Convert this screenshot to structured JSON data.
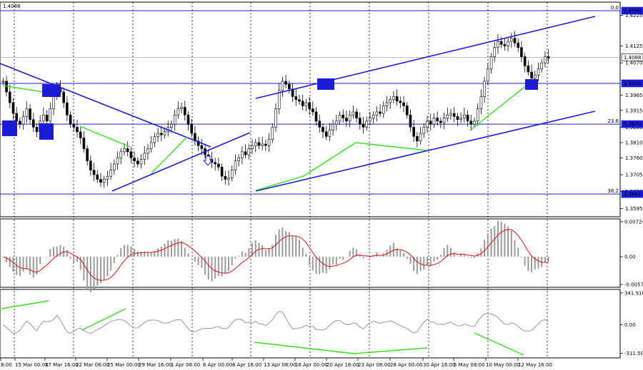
{
  "symbol_price": "1.4088",
  "price_panel": {
    "y_ticks": [
      "1.4225",
      "1.4125",
      "1.4070",
      "1.3965",
      "1.3915",
      "1.3860",
      "1.3810",
      "1.3760",
      "1.3705",
      "1.3650",
      "1.3595"
    ],
    "levels": [
      {
        "label": "1.4240",
        "fib": "0.0",
        "value": 1.424
      },
      {
        "label": "1.4088",
        "fib": "",
        "value": 1.4088,
        "type": "current"
      },
      {
        "label": "1.4003",
        "fib": "",
        "value": 1.4003
      },
      {
        "label": "1.3870",
        "fib": "23.6",
        "value": 1.387
      },
      {
        "label": "1.3642",
        "fib": "38.2",
        "value": 1.3642
      }
    ],
    "ylim": [
      1.3568,
      1.4268
    ]
  },
  "macd_panel": {
    "y_ticks": [
      "0.00724",
      "0.00",
      "-0.00572"
    ],
    "ylim": [
      -0.0063,
      0.0078
    ]
  },
  "cci_panel": {
    "y_ticks": [
      "341.9162",
      "0.00",
      "-311.503"
    ],
    "ylim": [
      -360,
      380
    ]
  },
  "x_labels": [
    "8:00",
    "15 Mar 00:00",
    "17 Mar 16:00",
    "22 Mar 08:00",
    "25 Mar 00:00",
    "29 Mar 16:00",
    "1 Apr 08:00",
    "6 Apr 00:00",
    "8 Apr 16:00",
    "13 Apr 08:00",
    "16 Apr 00:00",
    "20 Apr 16:00",
    "23 Apr 08:00",
    "28 Apr 00:00",
    "30 Apr 16:00",
    "5 May 08:00",
    "10 May 00:00",
    "12 May 16:00"
  ],
  "chart_data": {
    "type": "line",
    "title": "",
    "series": [
      {
        "values": [
          1.401,
          1.3975,
          1.394,
          1.3905,
          1.388,
          1.387,
          1.3895,
          1.392,
          1.3885,
          1.386,
          1.3845,
          1.388,
          1.39,
          1.388,
          1.392,
          1.396,
          1.399,
          1.3975,
          1.394,
          1.39,
          1.387,
          1.386,
          1.3845,
          1.3825,
          1.379,
          1.375,
          1.372,
          1.3705,
          1.369,
          1.368,
          1.369,
          1.37,
          1.372,
          1.374,
          1.376,
          1.378,
          1.379,
          1.378,
          1.376,
          1.375,
          1.374,
          1.3755,
          1.3775,
          1.379,
          1.381,
          1.383,
          1.384,
          1.3835,
          1.3845,
          1.386,
          1.387,
          1.39,
          1.392,
          1.3925,
          1.39,
          1.387,
          1.384,
          1.3815,
          1.38,
          1.379,
          1.377,
          1.3755,
          1.3745,
          1.374,
          1.373,
          1.37,
          1.369,
          1.3695,
          1.372,
          1.375,
          1.376,
          1.378,
          1.377,
          1.379,
          1.38,
          1.381,
          1.38,
          1.3805,
          1.38,
          1.382,
          1.386,
          1.392,
          1.398,
          1.401,
          1.4,
          1.3985,
          1.396,
          1.395,
          1.3945,
          1.393,
          1.394,
          1.392,
          1.391,
          1.388,
          1.386,
          1.3845,
          1.383,
          1.385,
          1.387,
          1.388,
          1.39,
          1.389,
          1.388,
          1.39,
          1.391,
          1.389,
          1.387,
          1.386,
          1.388,
          1.389,
          1.39,
          1.391,
          1.3905,
          1.393,
          1.394,
          1.395,
          1.396,
          1.3945,
          1.394,
          1.393,
          1.39,
          1.386,
          1.383,
          1.3815,
          1.384,
          1.386,
          1.388,
          1.387,
          1.389,
          1.388,
          1.3875,
          1.389,
          1.39,
          1.3905,
          1.3895,
          1.3885,
          1.389,
          1.39,
          1.388,
          1.387,
          1.388,
          1.392,
          1.396,
          1.401,
          1.405,
          1.409,
          1.412,
          1.414,
          1.413,
          1.4125,
          1.414,
          1.415,
          1.4135,
          1.412,
          1.409,
          1.406,
          1.404,
          1.402,
          1.403,
          1.405,
          1.407,
          1.409,
          1.4085
        ]
      }
    ]
  }
}
